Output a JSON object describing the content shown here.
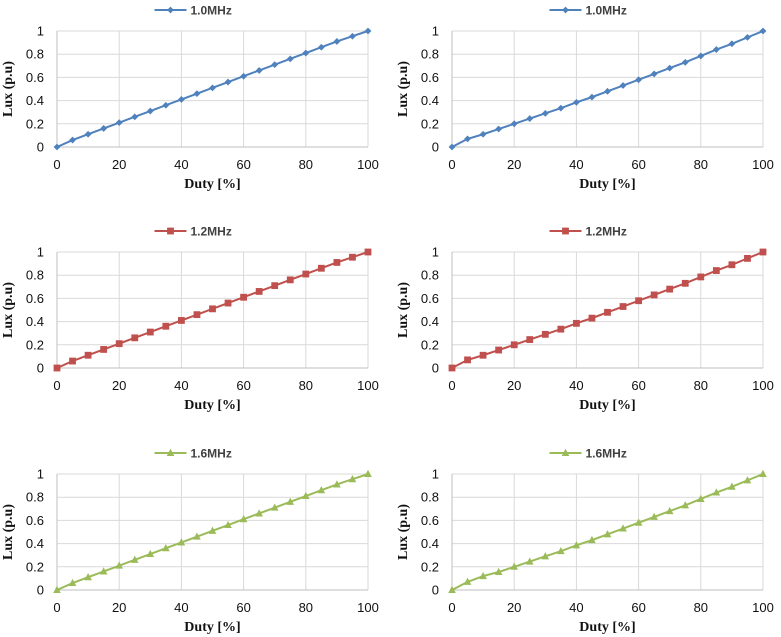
{
  "chart_data": [
    {
      "type": "line",
      "panel": "row1-left",
      "xlabel": "Duty [%]",
      "ylabel": "Lux (p.u)",
      "xlim": [
        0,
        100
      ],
      "ylim": [
        0,
        1
      ],
      "xticks": [
        0,
        20,
        40,
        60,
        80,
        100
      ],
      "yticks": [
        0,
        0.2,
        0.4,
        0.6,
        0.8,
        1
      ],
      "ytick_labels": [
        "0",
        "0.2",
        "0.4",
        "0.6",
        "0.8",
        "1"
      ],
      "grid": true,
      "legend_position": "top-center",
      "series": [
        {
          "name": "1.0MHz",
          "color": "#4f81bd",
          "marker": "diamond",
          "x": [
            0,
            5,
            10,
            15,
            20,
            25,
            30,
            35,
            40,
            45,
            50,
            55,
            60,
            65,
            70,
            75,
            80,
            85,
            90,
            95,
            100
          ],
          "y": [
            0,
            0.06,
            0.11,
            0.16,
            0.21,
            0.26,
            0.31,
            0.36,
            0.41,
            0.46,
            0.51,
            0.56,
            0.61,
            0.66,
            0.71,
            0.76,
            0.81,
            0.86,
            0.91,
            0.955,
            1.0
          ]
        }
      ]
    },
    {
      "type": "line",
      "panel": "row1-right",
      "xlabel": "Duty [%]",
      "ylabel": "Lux (p.u)",
      "xlim": [
        0,
        100
      ],
      "ylim": [
        0,
        1
      ],
      "xticks": [
        0,
        20,
        40,
        60,
        80,
        100
      ],
      "yticks": [
        0,
        0.2,
        0.4,
        0.6,
        0.8,
        1
      ],
      "ytick_labels": [
        "0",
        "0.2",
        "0.4",
        "0.6",
        "0.8",
        "1"
      ],
      "grid": true,
      "legend_position": "top-center",
      "series": [
        {
          "name": "1.0MHz",
          "color": "#4f81bd",
          "marker": "diamond",
          "x": [
            0,
            5,
            10,
            15,
            20,
            25,
            30,
            35,
            40,
            45,
            50,
            55,
            60,
            65,
            70,
            75,
            80,
            85,
            90,
            95,
            100
          ],
          "y": [
            0,
            0.07,
            0.11,
            0.155,
            0.2,
            0.245,
            0.29,
            0.335,
            0.385,
            0.43,
            0.48,
            0.53,
            0.58,
            0.63,
            0.68,
            0.73,
            0.785,
            0.84,
            0.89,
            0.945,
            1.0
          ]
        }
      ]
    },
    {
      "type": "line",
      "panel": "row2-left",
      "xlabel": "Duty [%]",
      "ylabel": "Lux (p.u)",
      "xlim": [
        0,
        100
      ],
      "ylim": [
        0,
        1
      ],
      "xticks": [
        0,
        20,
        40,
        60,
        80,
        100
      ],
      "yticks": [
        0,
        0.2,
        0.4,
        0.6,
        0.8,
        1
      ],
      "ytick_labels": [
        "0",
        "0.2",
        "0.4",
        "0.6",
        "0.8",
        "1"
      ],
      "grid": true,
      "legend_position": "top-center",
      "series": [
        {
          "name": "1.2MHz",
          "color": "#c0504d",
          "marker": "square",
          "x": [
            0,
            5,
            10,
            15,
            20,
            25,
            30,
            35,
            40,
            45,
            50,
            55,
            60,
            65,
            70,
            75,
            80,
            85,
            90,
            95,
            100
          ],
          "y": [
            0,
            0.06,
            0.11,
            0.16,
            0.21,
            0.26,
            0.31,
            0.36,
            0.41,
            0.46,
            0.51,
            0.56,
            0.61,
            0.66,
            0.71,
            0.76,
            0.81,
            0.86,
            0.91,
            0.955,
            1.0
          ]
        }
      ]
    },
    {
      "type": "line",
      "panel": "row2-right",
      "xlabel": "Duty [%]",
      "ylabel": "Lux (p.u)",
      "xlim": [
        0,
        100
      ],
      "ylim": [
        0,
        1
      ],
      "xticks": [
        0,
        20,
        40,
        60,
        80,
        100
      ],
      "yticks": [
        0,
        0.2,
        0.4,
        0.6,
        0.8,
        1
      ],
      "ytick_labels": [
        "0",
        "0.2",
        "0.4",
        "0.6",
        "0.8",
        "1"
      ],
      "grid": true,
      "legend_position": "top-center",
      "series": [
        {
          "name": "1.2MHz",
          "color": "#c0504d",
          "marker": "square",
          "x": [
            0,
            5,
            10,
            15,
            20,
            25,
            30,
            35,
            40,
            45,
            50,
            55,
            60,
            65,
            70,
            75,
            80,
            85,
            90,
            95,
            100
          ],
          "y": [
            0,
            0.07,
            0.11,
            0.155,
            0.2,
            0.245,
            0.29,
            0.335,
            0.385,
            0.43,
            0.48,
            0.53,
            0.58,
            0.63,
            0.68,
            0.73,
            0.785,
            0.84,
            0.89,
            0.945,
            1.0
          ]
        }
      ]
    },
    {
      "type": "line",
      "panel": "row3-left",
      "xlabel": "Duty [%]",
      "ylabel": "Lux (p.u)",
      "xlim": [
        0,
        100
      ],
      "ylim": [
        0,
        1
      ],
      "xticks": [
        0,
        20,
        40,
        60,
        80,
        100
      ],
      "yticks": [
        0,
        0.2,
        0.4,
        0.6,
        0.8,
        1
      ],
      "ytick_labels": [
        "0",
        "0.2",
        "0.4",
        "0.6",
        "0.8",
        "1"
      ],
      "grid": true,
      "legend_position": "top-center",
      "series": [
        {
          "name": "1.6MHz",
          "color": "#9bbb59",
          "marker": "triangle",
          "x": [
            0,
            5,
            10,
            15,
            20,
            25,
            30,
            35,
            40,
            45,
            50,
            55,
            60,
            65,
            70,
            75,
            80,
            85,
            90,
            95,
            100
          ],
          "y": [
            0,
            0.06,
            0.11,
            0.16,
            0.21,
            0.26,
            0.31,
            0.36,
            0.41,
            0.46,
            0.51,
            0.56,
            0.61,
            0.66,
            0.71,
            0.76,
            0.81,
            0.86,
            0.91,
            0.955,
            1.0
          ]
        }
      ]
    },
    {
      "type": "line",
      "panel": "row3-right",
      "xlabel": "Duty [%]",
      "ylabel": "Lux (p.u)",
      "xlim": [
        0,
        100
      ],
      "ylim": [
        0,
        1
      ],
      "xticks": [
        0,
        20,
        40,
        60,
        80,
        100
      ],
      "yticks": [
        0,
        0.2,
        0.4,
        0.6,
        0.8,
        1
      ],
      "ytick_labels": [
        "0",
        "0.2",
        "0.4",
        "0.6",
        "0.8",
        "1"
      ],
      "grid": true,
      "legend_position": "top-center",
      "series": [
        {
          "name": "1.6MHz",
          "color": "#9bbb59",
          "marker": "triangle",
          "x": [
            0,
            5,
            10,
            15,
            20,
            25,
            30,
            35,
            40,
            45,
            50,
            55,
            60,
            65,
            70,
            75,
            80,
            85,
            90,
            95,
            100
          ],
          "y": [
            0,
            0.07,
            0.12,
            0.155,
            0.2,
            0.245,
            0.29,
            0.335,
            0.385,
            0.43,
            0.48,
            0.53,
            0.58,
            0.63,
            0.68,
            0.73,
            0.785,
            0.84,
            0.89,
            0.945,
            1.0
          ]
        }
      ]
    }
  ]
}
